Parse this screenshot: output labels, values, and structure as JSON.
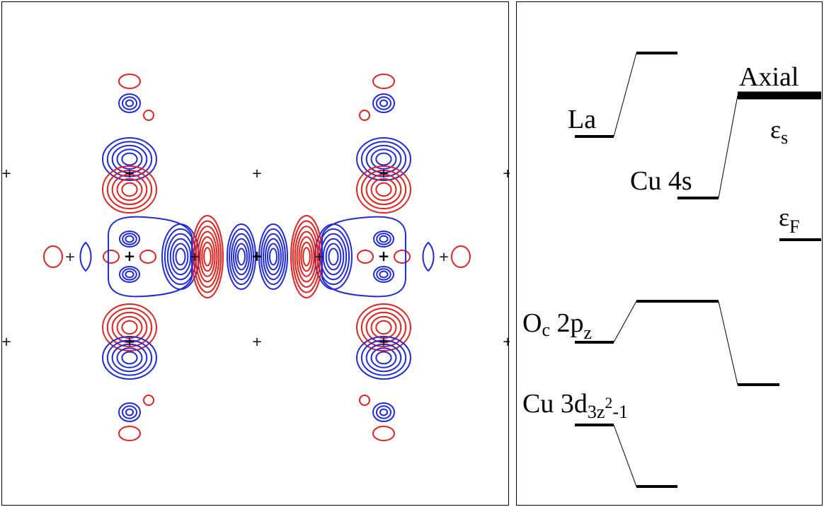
{
  "contour_plot": {
    "colors": {
      "positive": "#e8201c",
      "negative": "#1f2be0",
      "marker": "#000000"
    }
  },
  "energy_diagram": {
    "levels": {
      "la": {
        "text": "La"
      },
      "cu4s": {
        "text": "Cu 4s"
      },
      "axial": {
        "text": "Axial"
      },
      "eps_s": {
        "base": "ε",
        "sub": "s"
      },
      "eps_f": {
        "base": "ε",
        "sub": "F"
      },
      "oc2pz": {
        "base": "O",
        "sub": "c",
        "mid": " 2p",
        "sub2": "z"
      },
      "cu3d": {
        "base": "Cu 3d",
        "sub": "3z",
        "sup": "2",
        "tail": "-1"
      }
    }
  }
}
